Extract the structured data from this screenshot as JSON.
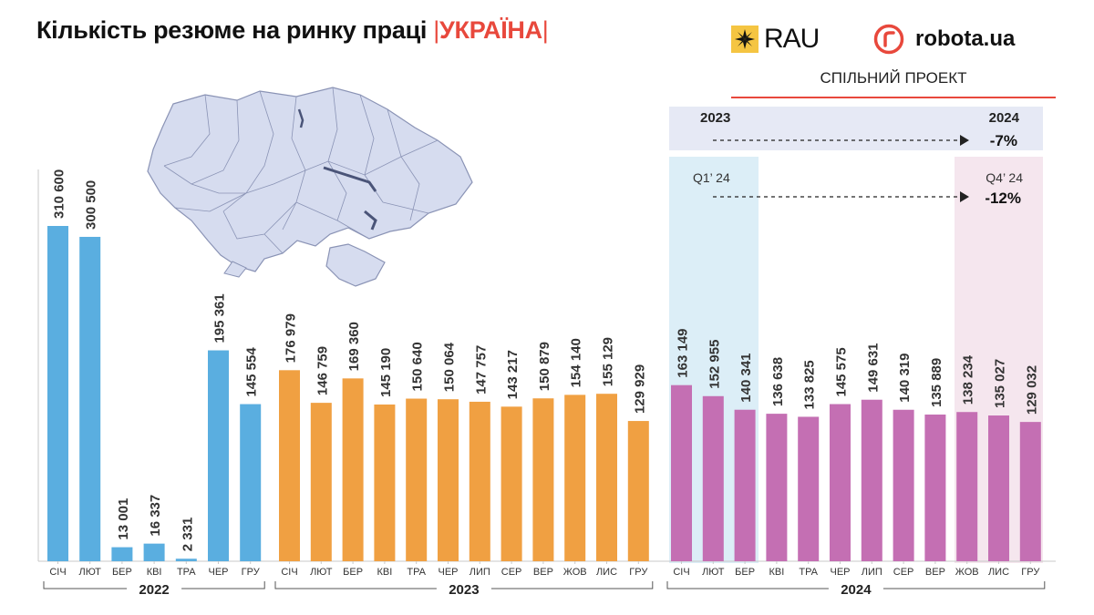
{
  "header": {
    "title_main": "Кількість резюме на ринку праці",
    "title_sep": "|",
    "title_country": "УКРАЇНА",
    "logo_rau": "RAU",
    "logo_robota": "robota.ua",
    "joint_project": "СПІЛЬНИЙ ПРОЕКТ"
  },
  "colors": {
    "y2022": "#5aaee0",
    "y2023": "#f0a042",
    "y2024": "#c46fb3",
    "accent": "#e8483c",
    "band_yoy": "#e6e9f5",
    "band_q1": "#dceef7",
    "band_q4": "#f5e6ee",
    "map_fill": "#d6dcef",
    "map_stroke": "#8a93b5"
  },
  "annotations": {
    "yoy_from": "2023",
    "yoy_to": "2024",
    "yoy_change": "-7%",
    "q_from": "Q1’ 24",
    "q_to": "Q4’ 24",
    "q_change": "-12%"
  },
  "chart_data": {
    "type": "bar",
    "title": "Кількість резюме на ринку праці | УКРАЇНА",
    "ylim": [
      0,
      330000
    ],
    "groups": [
      {
        "year": "2022",
        "categories": [
          "СІЧ",
          "ЛЮТ",
          "БЕР",
          "КВІ",
          "ТРА",
          "ЧЕР",
          "ГРУ"
        ],
        "values": [
          310600,
          300500,
          13001,
          16337,
          2331,
          195361,
          145554
        ],
        "labels": [
          "310 600",
          "300 500",
          "13 001",
          "16 337",
          "2 331",
          "195 361",
          "145 554"
        ]
      },
      {
        "year": "2023",
        "categories": [
          "СІЧ",
          "ЛЮТ",
          "БЕР",
          "КВІ",
          "ТРА",
          "ЧЕР",
          "ЛИП",
          "СЕР",
          "ВЕР",
          "ЖОВ",
          "ЛИС",
          "ГРУ"
        ],
        "values": [
          176979,
          146759,
          169360,
          145190,
          150640,
          150064,
          147757,
          143217,
          150879,
          154140,
          155129,
          129929
        ],
        "labels": [
          "176 979",
          "146 759",
          "169 360",
          "145 190",
          "150 640",
          "150 064",
          "147 757",
          "143 217",
          "150 879",
          "154 140",
          "155 129",
          "129 929"
        ]
      },
      {
        "year": "2024",
        "categories": [
          "СІЧ",
          "ЛЮТ",
          "БЕР",
          "КВІ",
          "ТРА",
          "ЧЕР",
          "ЛИП",
          "СЕР",
          "ВЕР",
          "ЖОВ",
          "ЛИС",
          "ГРУ"
        ],
        "values": [
          163149,
          152955,
          140341,
          136638,
          133825,
          145575,
          149631,
          140319,
          135889,
          138234,
          135027,
          129032
        ],
        "labels": [
          "163 149",
          "152 955",
          "140 341",
          "136 638",
          "133 825",
          "145 575",
          "149 631",
          "140 319",
          "135 889",
          "138 234",
          "135 027",
          "129 032"
        ]
      }
    ]
  }
}
